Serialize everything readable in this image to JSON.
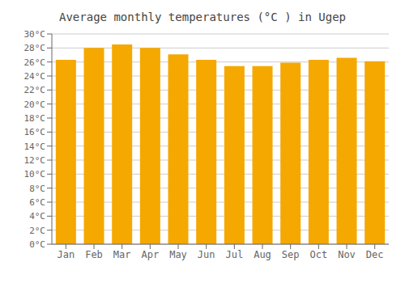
{
  "chart_data": {
    "type": "bar",
    "title": "Average monthly temperatures (°C ) in Ugep",
    "categories": [
      "Jan",
      "Feb",
      "Mar",
      "Apr",
      "May",
      "Jun",
      "Jul",
      "Aug",
      "Sep",
      "Oct",
      "Nov",
      "Dec"
    ],
    "values": [
      26.3,
      28.0,
      28.5,
      28.0,
      27.1,
      26.3,
      25.4,
      25.4,
      25.9,
      26.3,
      26.6,
      26.1
    ],
    "color": "#F5A800",
    "ylim": [
      0,
      30
    ],
    "yticks": [
      {
        "value": 0,
        "label": "0°C"
      },
      {
        "value": 2,
        "label": "2°C"
      },
      {
        "value": 4,
        "label": "4°C"
      },
      {
        "value": 6,
        "label": "6°C"
      },
      {
        "value": 8,
        "label": "8°C"
      },
      {
        "value": 10,
        "label": "10°C"
      },
      {
        "value": 12,
        "label": "12°C"
      },
      {
        "value": 14,
        "label": "14°C"
      },
      {
        "value": 16,
        "label": "16°C"
      },
      {
        "value": 18,
        "label": "18°C"
      },
      {
        "value": 20,
        "label": "20°C"
      },
      {
        "value": 22,
        "label": "22°C"
      },
      {
        "value": 24,
        "label": "24°C"
      },
      {
        "value": 26,
        "label": "26°C"
      },
      {
        "value": 28,
        "label": "28°C"
      },
      {
        "value": 30,
        "label": "30°C"
      }
    ],
    "grid": true
  }
}
